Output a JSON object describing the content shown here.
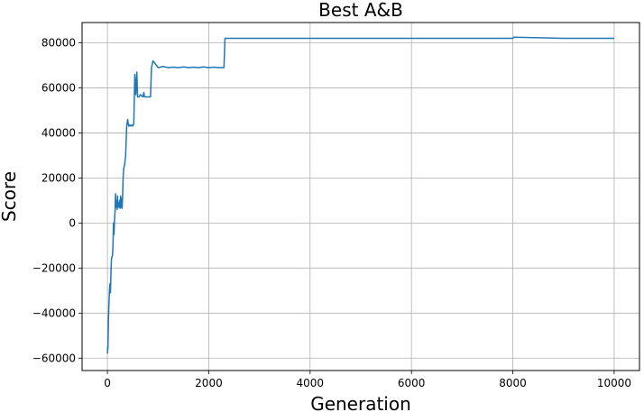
{
  "chart_data": {
    "type": "line",
    "title": "Best A&B",
    "xlabel": "Generation",
    "ylabel": "Score",
    "xlim": [
      -500,
      10500
    ],
    "ylim": [
      -65500,
      89000
    ],
    "xticks": [
      0,
      2000,
      4000,
      6000,
      8000,
      10000
    ],
    "xtick_labels": [
      "0",
      "2000",
      "4000",
      "6000",
      "8000",
      "10000"
    ],
    "yticks": [
      -60000,
      -40000,
      -20000,
      0,
      20000,
      40000,
      60000,
      80000
    ],
    "ytick_labels": [
      "−60000",
      "−40000",
      "−20000",
      "0",
      "20000",
      "40000",
      "60000",
      "80000"
    ],
    "grid": true,
    "line_color": "#1f77b4",
    "series": [
      {
        "x": [
          0,
          5,
          10,
          20,
          30,
          40,
          50,
          60,
          70,
          80,
          90,
          100,
          110,
          120,
          130,
          140,
          150,
          160,
          170,
          180,
          190,
          200,
          205,
          210,
          220,
          230,
          240,
          250,
          260,
          270,
          280,
          290,
          300,
          310,
          320,
          330,
          340,
          350,
          360,
          380,
          400,
          420,
          440,
          460,
          480,
          500,
          520,
          540,
          560,
          580,
          595,
          600,
          605,
          610,
          615,
          625,
          650,
          700,
          720,
          730,
          740,
          750,
          800,
          850,
          870,
          880,
          900,
          1000,
          1100,
          1200,
          1300,
          1400,
          1500,
          1600,
          1700,
          1800,
          1900,
          2000,
          2100,
          2200,
          2300,
          2320,
          2340,
          2500,
          3000,
          4000,
          5000,
          6000,
          7000,
          8000,
          8020,
          9000,
          10000
        ],
        "y": [
          -58000,
          -55000,
          -56000,
          -43000,
          -36000,
          -30000,
          -27000,
          -31000,
          -22000,
          -16000,
          -15000,
          -14500,
          -10000,
          0,
          -5000,
          1000,
          5000,
          13000,
          7000,
          10000,
          6000,
          12000,
          7000,
          8000,
          9000,
          7000,
          10000,
          6500,
          12000,
          7000,
          11000,
          6500,
          12000,
          20000,
          24000,
          25000,
          26000,
          28000,
          30000,
          43000,
          46000,
          43000,
          43500,
          43000,
          43500,
          43000,
          44000,
          66000,
          57000,
          67000,
          56000,
          56000,
          56000,
          56000,
          56000,
          56000,
          57000,
          56000,
          58000,
          56000,
          56000,
          56000,
          56000,
          56000,
          69000,
          70000,
          72000,
          69000,
          69500,
          69000,
          69200,
          69000,
          69300,
          69000,
          69200,
          69000,
          69300,
          69000,
          69200,
          69000,
          69000,
          82000,
          82000,
          82000,
          82000,
          82000,
          82000,
          82000,
          82000,
          82000,
          82500,
          82000,
          82000
        ]
      }
    ]
  }
}
